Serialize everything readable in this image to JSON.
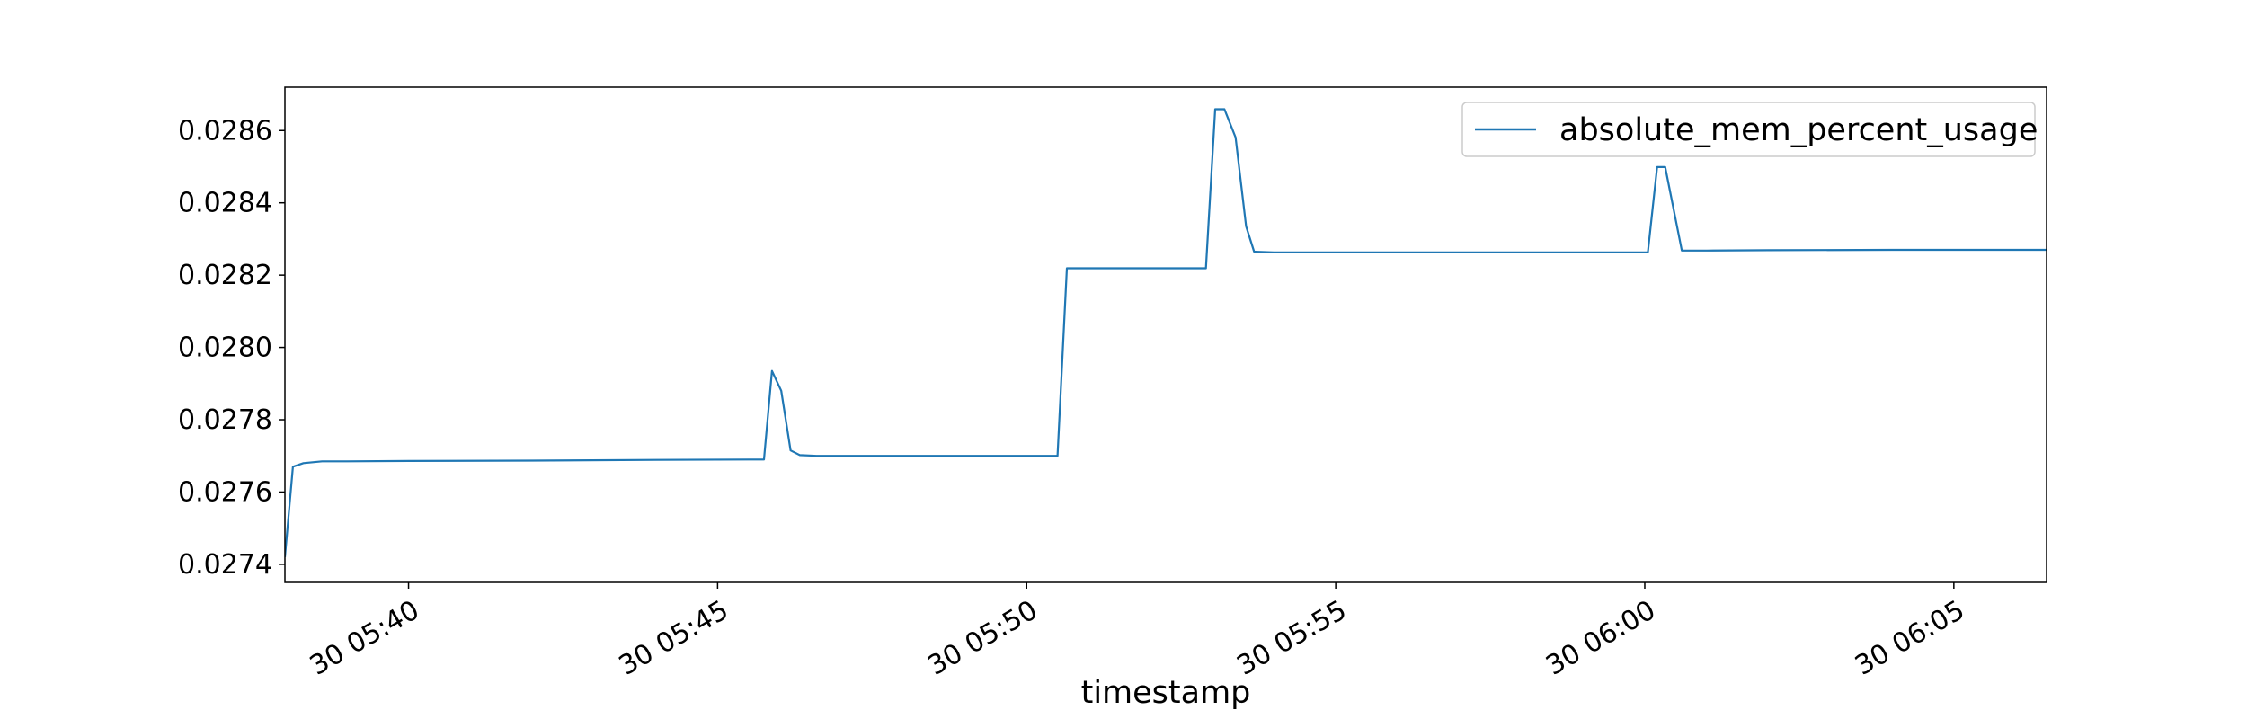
{
  "chart_data": {
    "type": "line",
    "title": "",
    "xlabel": "timestamp",
    "ylabel": "",
    "xlim_minutes": [
      38.0,
      66.5
    ],
    "ylim": [
      0.02735,
      0.02872
    ],
    "x_ticks": [
      {
        "value": 40,
        "label": "30 05:40"
      },
      {
        "value": 45,
        "label": "30 05:45"
      },
      {
        "value": 50,
        "label": "30 05:50"
      },
      {
        "value": 55,
        "label": "30 05:55"
      },
      {
        "value": 60,
        "label": "30 06:00"
      },
      {
        "value": 65,
        "label": "30 06:05"
      }
    ],
    "x_axis_note": "x values are minutes after 05:00 on day 30",
    "y_ticks": [
      {
        "value": 0.0274,
        "label": "0.0274"
      },
      {
        "value": 0.0276,
        "label": "0.0276"
      },
      {
        "value": 0.0278,
        "label": "0.0278"
      },
      {
        "value": 0.028,
        "label": "0.0280"
      },
      {
        "value": 0.0282,
        "label": "0.0282"
      },
      {
        "value": 0.0284,
        "label": "0.0284"
      },
      {
        "value": 0.0286,
        "label": "0.0286"
      }
    ],
    "legend": {
      "position": "top-right",
      "entries": [
        "absolute_mem_percent_usage"
      ]
    },
    "grid": false,
    "colors": {
      "series": "#1f77b4"
    },
    "series": [
      {
        "name": "absolute_mem_percent_usage",
        "x": [
          38.0,
          38.13,
          38.3,
          38.6,
          39.0,
          40.0,
          42.0,
          44.0,
          45.5,
          45.75,
          45.88,
          46.03,
          46.18,
          46.33,
          46.6,
          47.0,
          48.0,
          49.0,
          50.0,
          50.35,
          50.5,
          50.65,
          51.0,
          52.0,
          52.9,
          53.05,
          53.2,
          53.38,
          53.55,
          53.68,
          54.0,
          56.0,
          58.0,
          60.0,
          60.05,
          60.2,
          60.33,
          60.6,
          61.0,
          62.0,
          64.0,
          66.5
        ],
        "y": [
          0.02742,
          0.02767,
          0.02768,
          0.027685,
          0.027685,
          0.027686,
          0.027687,
          0.027689,
          0.02769,
          0.02769,
          0.027935,
          0.02788,
          0.027715,
          0.027702,
          0.0277,
          0.0277,
          0.0277,
          0.0277,
          0.0277,
          0.0277,
          0.0277,
          0.028219,
          0.028219,
          0.028219,
          0.028219,
          0.028659,
          0.028659,
          0.028581,
          0.028335,
          0.028265,
          0.028263,
          0.028263,
          0.028263,
          0.028263,
          0.028263,
          0.028499,
          0.028499,
          0.028268,
          0.028268,
          0.028269,
          0.02827,
          0.02827
        ]
      }
    ]
  }
}
